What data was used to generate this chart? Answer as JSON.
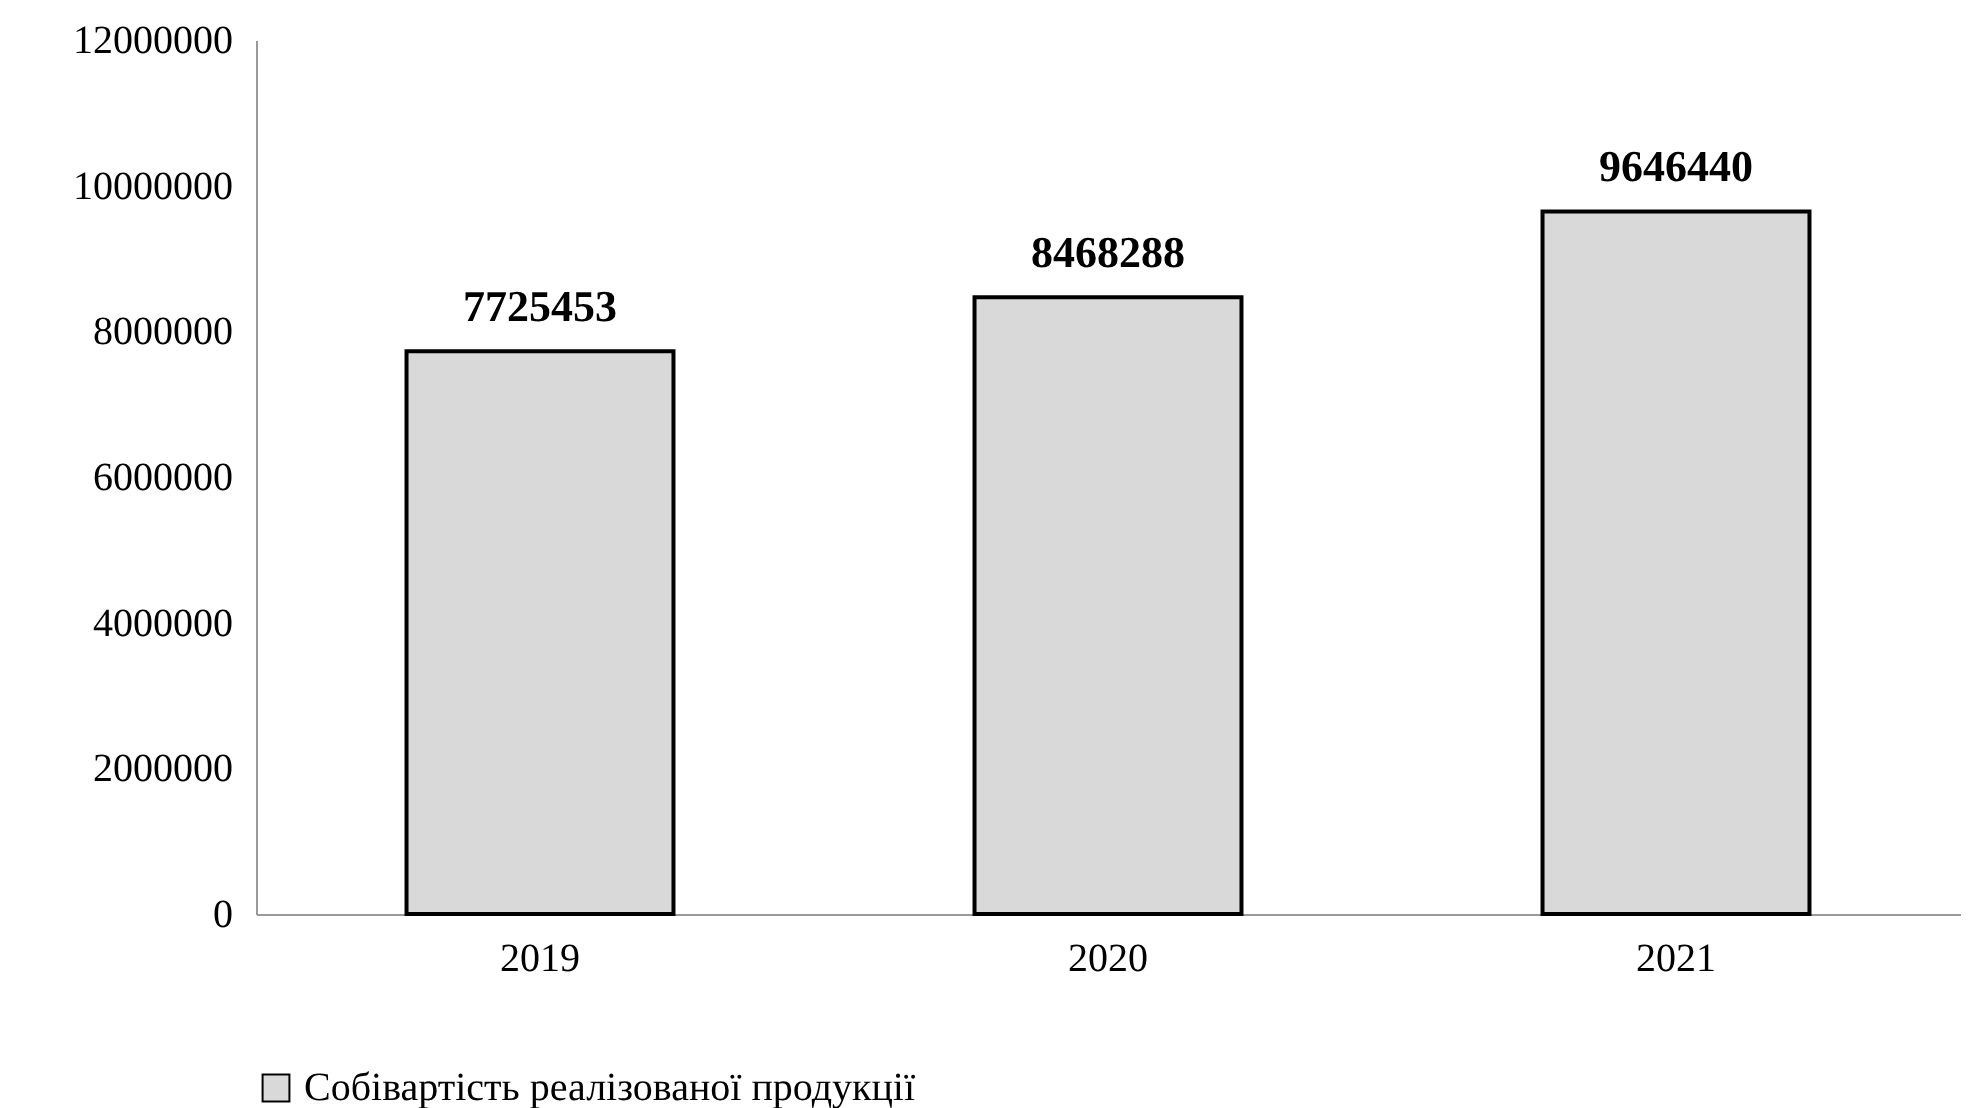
{
  "chart_data": {
    "type": "bar",
    "categories": [
      "2019",
      "2020",
      "2021"
    ],
    "series": [
      {
        "name": "Собівартість реалізованої продукції",
        "color": "#d9d9d9",
        "values": [
          7725453,
          8468288,
          9646440
        ]
      }
    ],
    "ylim": [
      0,
      12000000
    ],
    "yticks": [
      0,
      2000000,
      4000000,
      6000000,
      8000000,
      10000000,
      12000000
    ],
    "grid": false,
    "legend": "bottom",
    "data_labels": true
  }
}
